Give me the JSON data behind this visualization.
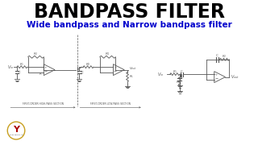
{
  "title": "BANDPASS FILTER",
  "subtitle": "Wide bandpass and Narrow bandpass filter",
  "title_color": "#000000",
  "subtitle_color": "#0000cc",
  "bg_color": "#ffffff",
  "title_fontsize": 17,
  "subtitle_fontsize": 7.5,
  "circuit_color": "#555555",
  "logo_circle_color": "#c8a020",
  "logo_y_color": "#aa0000",
  "logo_y_color2": "#1122bb",
  "section_label1": "FIRST-ORDER HIGH-PASS SECTION",
  "section_label2": "FIRST-ORDER LOW-PASS SECTION"
}
